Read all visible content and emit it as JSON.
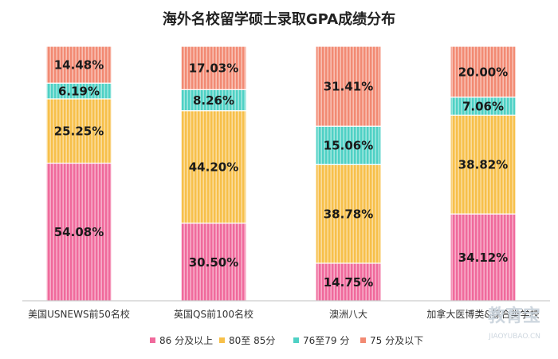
{
  "chart_data": {
    "type": "bar",
    "stacked": true,
    "title": "海外名校留学硕士录取GPA成绩分布",
    "categories": [
      "美国USNEWS前50名校",
      "英国QS前100名校",
      "澳洲八大",
      "加拿大医博类&综合类学校"
    ],
    "series": [
      {
        "name": "86 分及以上",
        "color": "#f06a9c",
        "values": [
          54.08,
          30.5,
          14.75,
          34.12
        ],
        "labels": [
          "54.08%",
          "30.50%",
          "14.75%",
          "34.12%"
        ]
      },
      {
        "name": "80至 85分",
        "color": "#f7c04a",
        "values": [
          25.25,
          44.2,
          38.78,
          38.82
        ],
        "labels": [
          "25.25%",
          "44.20%",
          "38.78%",
          "38.82%"
        ]
      },
      {
        "name": "76至79 分",
        "color": "#4fd1c5",
        "values": [
          6.19,
          8.26,
          15.06,
          7.06
        ],
        "labels": [
          "6.19%",
          "8.26%",
          "15.06%",
          "7.06%"
        ]
      },
      {
        "name": "75 分及以下",
        "color": "#f28a73",
        "values": [
          14.48,
          17.03,
          31.41,
          20.0
        ],
        "labels": [
          "14.48%",
          "17.03%",
          "31.41%",
          "20.00%"
        ]
      }
    ],
    "ylim": [
      0,
      100
    ],
    "grid": false,
    "legend_position": "bottom"
  },
  "watermark": {
    "text": "教育宝",
    "url": "JIAOYUBAO.CN"
  }
}
